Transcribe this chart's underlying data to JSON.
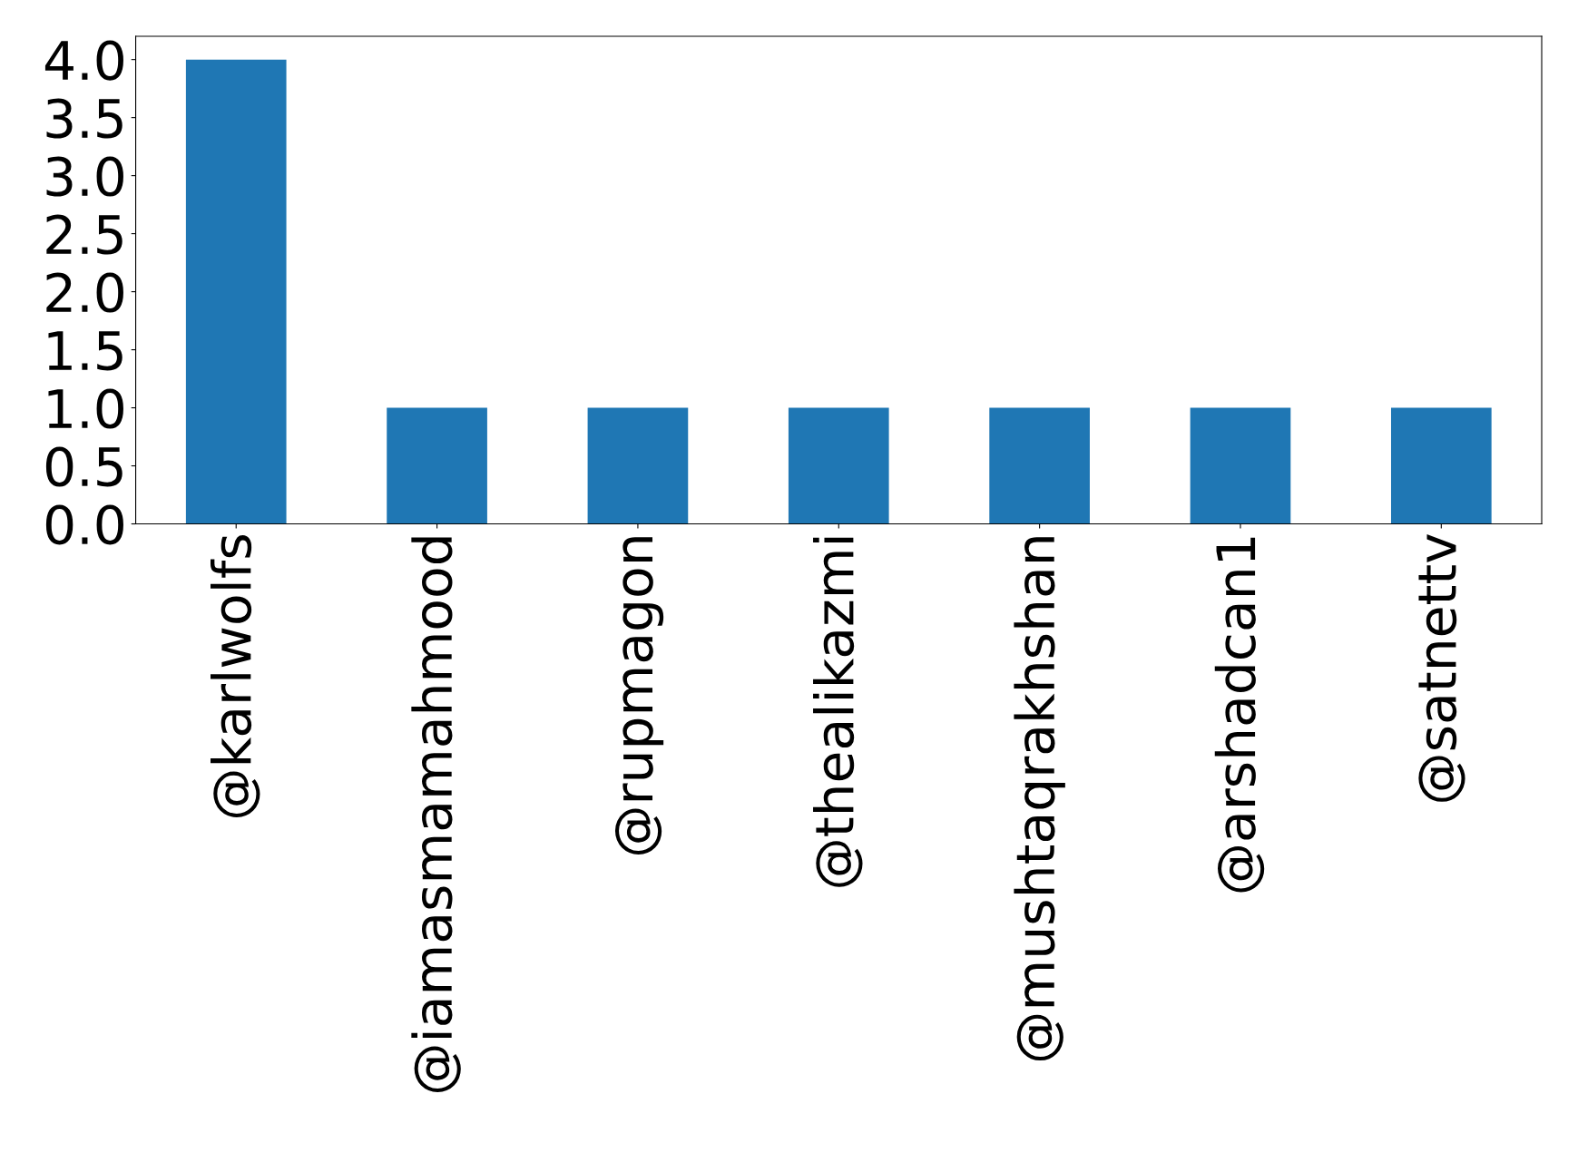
{
  "chart_data": {
    "type": "bar",
    "categories": [
      "@karlwolfs",
      "@iamasmamahmood",
      "@rupmagon",
      "@thealikazmi",
      "@mushtaqrakhshan",
      "@arshadcan1",
      "@satnettv"
    ],
    "values": [
      4,
      1,
      1,
      1,
      1,
      1,
      1
    ],
    "color": "#1f77b4",
    "ylim": [
      0,
      4.2
    ],
    "yticks": [
      {
        "value": 0,
        "label": "0.0"
      },
      {
        "value": 0.5,
        "label": "0.5"
      },
      {
        "value": 1,
        "label": "1.0"
      },
      {
        "value": 1.5,
        "label": "1.5"
      },
      {
        "value": 2,
        "label": "2.0"
      },
      {
        "value": 2.5,
        "label": "2.5"
      },
      {
        "value": 3,
        "label": "3.0"
      },
      {
        "value": 3.5,
        "label": "3.5"
      },
      {
        "value": 4,
        "label": "4.0"
      }
    ],
    "grid": false,
    "legend": false
  }
}
